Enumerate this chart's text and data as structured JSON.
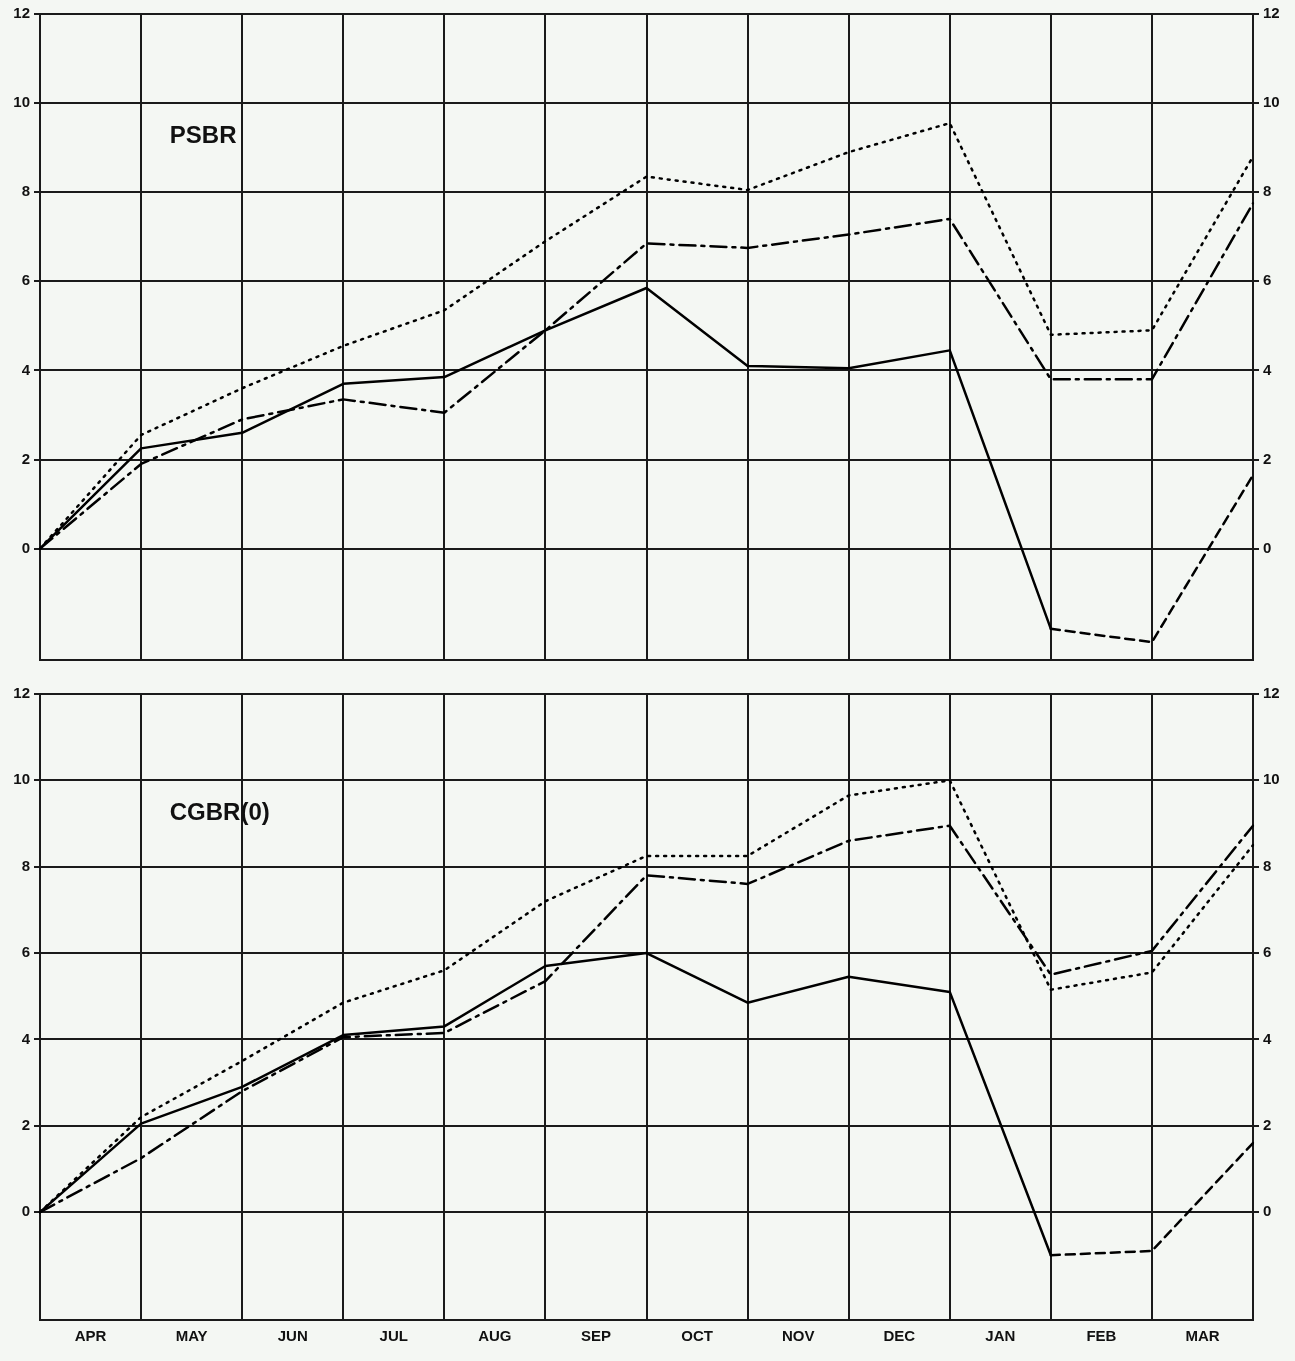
{
  "chart_data": [
    {
      "type": "line",
      "title": "PSBR",
      "categories": [
        null,
        null,
        null,
        null,
        null,
        null,
        null,
        null,
        null,
        null,
        null,
        null,
        null
      ],
      "ylim": [
        -2.5,
        12
      ],
      "yticks": [
        0,
        2,
        4,
        6,
        8,
        10,
        12
      ],
      "y2lim": [
        -2.5,
        12
      ],
      "y2ticks": [
        0,
        2,
        4,
        6,
        8,
        10,
        12
      ],
      "grid": true,
      "tick_labels": "y",
      "series": [
        {
          "color": "#000000",
          "line_style": "solid",
          "values": [
            0,
            2.25,
            2.6,
            3.7,
            3.85,
            4.9,
            5.85,
            4.1,
            4.05,
            4.45,
            -1.8,
            null,
            null
          ]
        },
        {
          "color": "#000000",
          "line_style": "dashed",
          "values": [
            null,
            null,
            null,
            null,
            null,
            null,
            null,
            null,
            null,
            null,
            -1.8,
            -2.1,
            1.65
          ]
        },
        {
          "color": "#000000",
          "line_style": "dashdot",
          "values": [
            0,
            1.9,
            2.9,
            3.35,
            3.05,
            4.9,
            6.85,
            6.75,
            7.05,
            7.4,
            3.8,
            3.8,
            7.75
          ]
        },
        {
          "color": "#000000",
          "line_style": "dotted",
          "values": [
            0,
            2.55,
            3.6,
            4.55,
            5.35,
            6.9,
            8.35,
            8.05,
            8.9,
            9.55,
            4.8,
            4.9,
            8.8
          ]
        }
      ]
    },
    {
      "type": "line",
      "title": "CGBR(0)",
      "categories": [
        null,
        "APR",
        null,
        "MAY",
        null,
        "JUN",
        null,
        "JUL",
        null,
        "AUG",
        null,
        "SEP",
        null,
        "OCT",
        null,
        "NOV",
        null,
        "DEC",
        null,
        "JAN",
        null,
        "FEB",
        null,
        "MAR",
        null
      ],
      "ylim": [
        -2.5,
        12
      ],
      "yticks": [
        0,
        2,
        4,
        6,
        8,
        10,
        12
      ],
      "y2lim": [
        -2.5,
        12
      ],
      "y2ticks": [
        0,
        2,
        4,
        6,
        8,
        10,
        12
      ],
      "grid": true,
      "series": [
        {
          "color": "#000000",
          "line_style": "solid",
          "values": [
            0,
            null,
            2.05,
            null,
            2.9,
            null,
            4.1,
            null,
            4.3,
            null,
            5.7,
            null,
            6.0,
            null,
            4.85,
            null,
            5.45,
            null,
            5.1,
            null,
            -1.0,
            null,
            null,
            null,
            null
          ]
        },
        {
          "color": "#000000",
          "line_style": "dashed",
          "values": [
            null,
            null,
            null,
            null,
            null,
            null,
            null,
            null,
            null,
            null,
            null,
            null,
            null,
            null,
            null,
            null,
            null,
            null,
            null,
            null,
            -1.0,
            null,
            -0.9,
            null,
            1.6
          ]
        },
        {
          "color": "#000000",
          "line_style": "dashdot",
          "values": [
            0,
            null,
            1.25,
            null,
            2.8,
            null,
            4.05,
            null,
            4.15,
            null,
            5.35,
            null,
            7.8,
            null,
            7.6,
            null,
            8.6,
            null,
            8.95,
            null,
            5.5,
            null,
            6.05,
            null,
            8.95
          ]
        },
        {
          "color": "#000000",
          "line_style": "dotted",
          "values": [
            0,
            null,
            2.2,
            null,
            3.5,
            null,
            4.85,
            null,
            5.6,
            null,
            7.2,
            null,
            8.25,
            null,
            8.25,
            null,
            9.65,
            null,
            10.0,
            null,
            5.15,
            null,
            5.55,
            null,
            8.5
          ]
        }
      ]
    }
  ]
}
